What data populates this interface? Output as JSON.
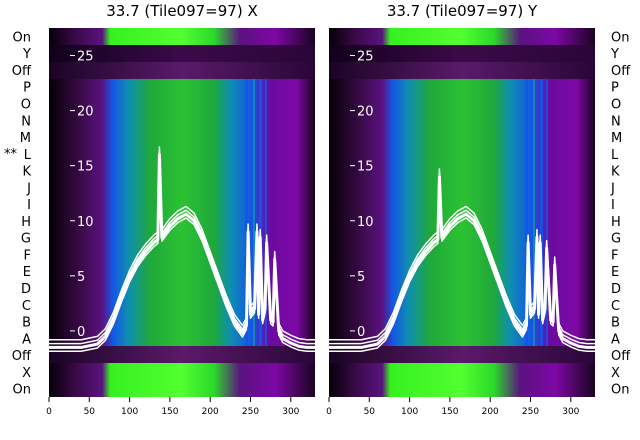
{
  "chart_data": [
    {
      "type": "heatmap",
      "title": "33.7 (Tile097=97) X",
      "xlabel": "",
      "ylabel": "",
      "x_ticks": [
        0,
        50,
        100,
        150,
        200,
        250,
        300
      ],
      "xlim": [
        0,
        330
      ],
      "y_ticks": [
        0,
        5,
        10,
        15,
        20,
        25
      ],
      "ylim": [
        -6,
        27.5
      ],
      "row_labels": [
        "On",
        "X",
        "Off",
        "A",
        "B",
        "C",
        "D",
        "E",
        "F",
        "G",
        "H",
        "I",
        "J",
        "K",
        "L",
        "M",
        "N",
        "O",
        "P",
        "Off",
        "Y",
        "On"
      ],
      "marked_row": {
        "row": "L",
        "marker": "**"
      },
      "series": [
        {
          "values_x": [
            0,
            40,
            60,
            70,
            80,
            90,
            100,
            110,
            120,
            130,
            135,
            137,
            140,
            150,
            160,
            170,
            180,
            190,
            200,
            210,
            220,
            230,
            240,
            245,
            247,
            250,
            255,
            258,
            260,
            262,
            265,
            268,
            270,
            275,
            278,
            280,
            285,
            290,
            300,
            310,
            320,
            330
          ],
          "values_y": [
            -1.5,
            -1.5,
            -1.2,
            -0.5,
            1.0,
            3.0,
            4.8,
            6.2,
            7.2,
            8.0,
            8.3,
            16.0,
            8.5,
            9.5,
            10.2,
            10.6,
            10.0,
            8.5,
            6.5,
            4.5,
            2.5,
            0.8,
            -0.2,
            0.5,
            9.0,
            1.5,
            2.0,
            9.0,
            1.5,
            8.5,
            1.0,
            2.0,
            8.0,
            1.0,
            0.8,
            6.5,
            0.0,
            -0.7,
            -1.1,
            -1.4,
            -1.5,
            -1.5
          ]
        }
      ]
    },
    {
      "type": "heatmap",
      "title": "33.7 (Tile097=97) Y",
      "xlabel": "",
      "ylabel": "",
      "x_ticks": [
        0,
        50,
        100,
        150,
        200,
        250,
        300
      ],
      "xlim": [
        0,
        330
      ],
      "y_ticks": [
        0,
        5,
        10,
        15,
        20,
        25
      ],
      "ylim": [
        -6,
        27.5
      ],
      "row_labels": [
        "On",
        "X",
        "Off",
        "A",
        "B",
        "C",
        "D",
        "E",
        "F",
        "G",
        "H",
        "I",
        "J",
        "K",
        "L",
        "M",
        "N",
        "O",
        "P",
        "Off",
        "Y",
        "On"
      ],
      "series": [
        {
          "values_x": [
            0,
            40,
            60,
            70,
            80,
            90,
            100,
            110,
            120,
            130,
            135,
            137,
            140,
            150,
            160,
            170,
            180,
            190,
            200,
            210,
            220,
            230,
            240,
            245,
            247,
            250,
            255,
            258,
            260,
            262,
            265,
            268,
            270,
            275,
            278,
            280,
            285,
            290,
            300,
            310,
            320,
            330
          ],
          "values_y": [
            -1.5,
            -1.5,
            -1.2,
            -0.5,
            1.0,
            3.0,
            4.8,
            6.2,
            7.2,
            8.0,
            8.3,
            14.0,
            8.5,
            9.5,
            10.2,
            10.6,
            10.0,
            8.5,
            6.5,
            4.5,
            2.5,
            0.8,
            -0.2,
            0.5,
            8.0,
            1.5,
            2.0,
            8.5,
            1.5,
            8.0,
            1.0,
            2.0,
            7.5,
            1.0,
            0.8,
            6.0,
            0.0,
            -0.7,
            -1.1,
            -1.4,
            -1.5,
            -1.5
          ]
        }
      ]
    }
  ],
  "colors": {
    "bright_green": "#36f020",
    "green": "#1fa83a",
    "teal": "#0f8fae",
    "blue": "#1457e6",
    "purple": "#7d07a5",
    "dark_purple": "#3a0a48",
    "black": "#0a0010",
    "trace": "#ffffff"
  }
}
